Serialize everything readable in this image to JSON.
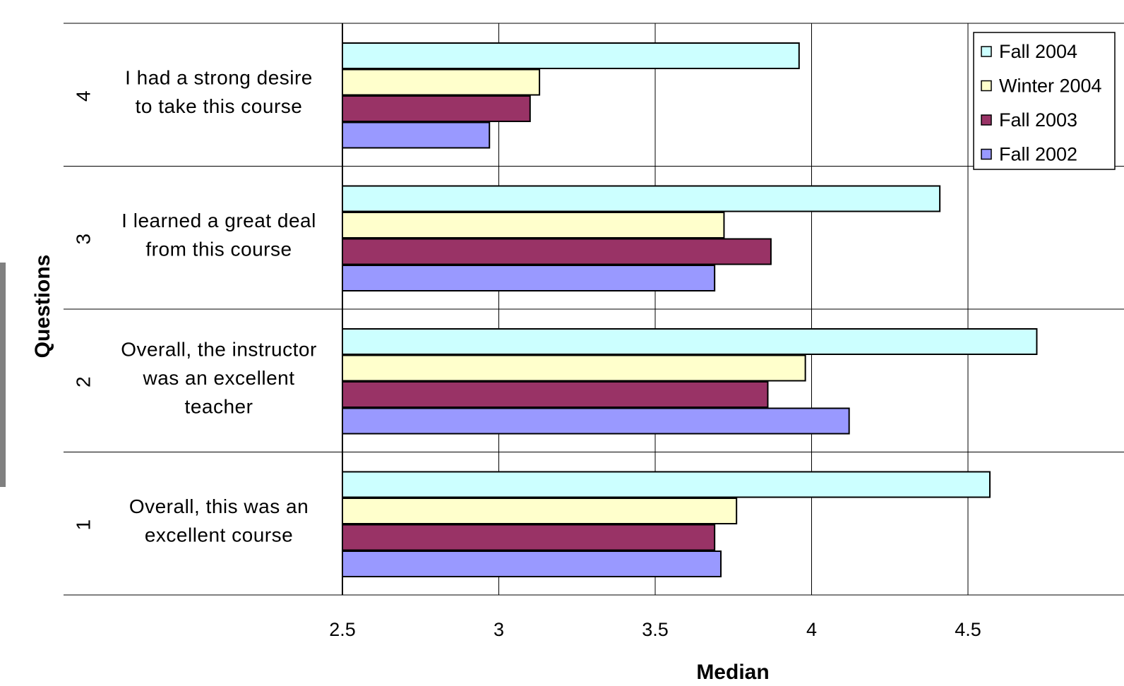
{
  "chart_data": {
    "type": "bar",
    "orientation": "horizontal",
    "title": "",
    "xlabel": "Median",
    "ylabel": "Questions",
    "xlim": [
      2.5,
      5.0
    ],
    "x_ticks": [
      "2.5",
      "3",
      "3.5",
      "4",
      "4.5"
    ],
    "grid": true,
    "legend_position": "top-right",
    "categories": [
      {
        "number": "1",
        "lines": [
          "Overall, this was an",
          "excellent course"
        ]
      },
      {
        "number": "2",
        "lines": [
          "Overall, the instructor",
          "was an excellent",
          "teacher"
        ]
      },
      {
        "number": "3",
        "lines": [
          "I learned a great deal",
          "from this course"
        ]
      },
      {
        "number": "4",
        "lines": [
          "I had a strong desire",
          "to take this course"
        ]
      }
    ],
    "series": [
      {
        "name": "Fall 2004",
        "color": "#ccffff",
        "values": [
          4.57,
          4.72,
          4.41,
          3.96
        ]
      },
      {
        "name": "Winter 2004",
        "color": "#ffffcc",
        "values": [
          3.76,
          3.98,
          3.72,
          3.13
        ]
      },
      {
        "name": "Fall 2003",
        "color": "#993366",
        "values": [
          3.69,
          3.86,
          3.87,
          3.1
        ]
      },
      {
        "name": "Fall 2002",
        "color": "#9999ff",
        "values": [
          3.71,
          4.12,
          3.69,
          2.97
        ]
      }
    ]
  }
}
